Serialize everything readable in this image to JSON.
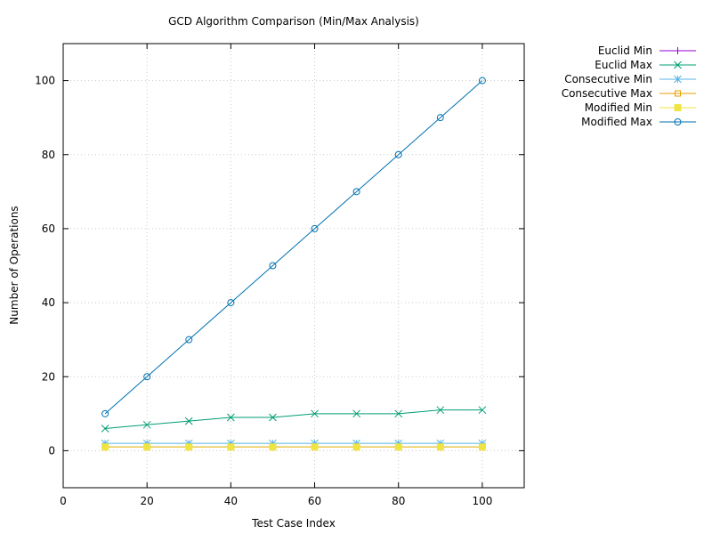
{
  "chart_data": {
    "type": "line",
    "title": "GCD Algorithm Comparison (Min/Max Analysis)",
    "xlabel": "Test Case Index",
    "ylabel": "Number of Operations",
    "xlim": [
      0,
      110
    ],
    "ylim": [
      -10,
      110
    ],
    "x_ticks": [
      0,
      20,
      40,
      60,
      80,
      100
    ],
    "y_ticks": [
      0,
      20,
      40,
      60,
      80,
      100
    ],
    "grid": true,
    "legend_position": "outside-top-right",
    "x": [
      10,
      20,
      30,
      40,
      50,
      60,
      70,
      80,
      90,
      100
    ],
    "series": [
      {
        "name": "Euclid Min",
        "values": [
          1,
          1,
          1,
          1,
          1,
          1,
          1,
          1,
          1,
          1
        ],
        "color": "#9400d3",
        "marker": "plus"
      },
      {
        "name": "Euclid Max",
        "values": [
          6,
          7,
          8,
          9,
          9,
          10,
          10,
          10,
          11,
          11
        ],
        "color": "#009e73",
        "marker": "cross"
      },
      {
        "name": "Consecutive Min",
        "values": [
          2,
          2,
          2,
          2,
          2,
          2,
          2,
          2,
          2,
          2
        ],
        "color": "#56b4e9",
        "marker": "star"
      },
      {
        "name": "Consecutive Max",
        "values": [
          1,
          1,
          1,
          1,
          1,
          1,
          1,
          1,
          1,
          1
        ],
        "color": "#e69f00",
        "marker": "open-square"
      },
      {
        "name": "Modified Min",
        "values": [
          1,
          1,
          1,
          1,
          1,
          1,
          1,
          1,
          1,
          1
        ],
        "color": "#f0e442",
        "marker": "filled-square"
      },
      {
        "name": "Modified Max",
        "values": [
          10,
          20,
          30,
          40,
          50,
          60,
          70,
          80,
          90,
          100
        ],
        "color": "#0072b2",
        "marker": "open-circle"
      }
    ]
  }
}
